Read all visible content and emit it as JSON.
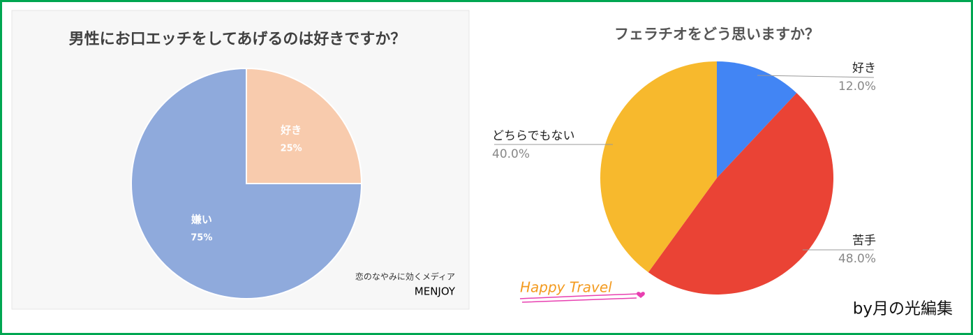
{
  "chart_data": [
    {
      "type": "pie",
      "title": "男性にお口エッチをしてあげるのは好きですか？",
      "categories": [
        "好き",
        "嫌い"
      ],
      "values": [
        25,
        75
      ],
      "value_labels": [
        "25%",
        "75%"
      ],
      "colors": [
        "#f8cbad",
        "#8faadc"
      ],
      "annotations": [
        "恋のなやみに効くメディア",
        "MENJOY"
      ]
    },
    {
      "type": "pie",
      "title": "フェラチオをどう思いますか？",
      "categories": [
        "好き",
        "苦手",
        "どちらでもない"
      ],
      "values": [
        12,
        48,
        40
      ],
      "value_labels": [
        "12.0%",
        "48.0%",
        "40.0%"
      ],
      "colors": [
        "#4285f4",
        "#ea4335",
        "#f7b92d"
      ],
      "annotations": [
        "Happy Travel",
        "by月の光編集"
      ]
    }
  ]
}
